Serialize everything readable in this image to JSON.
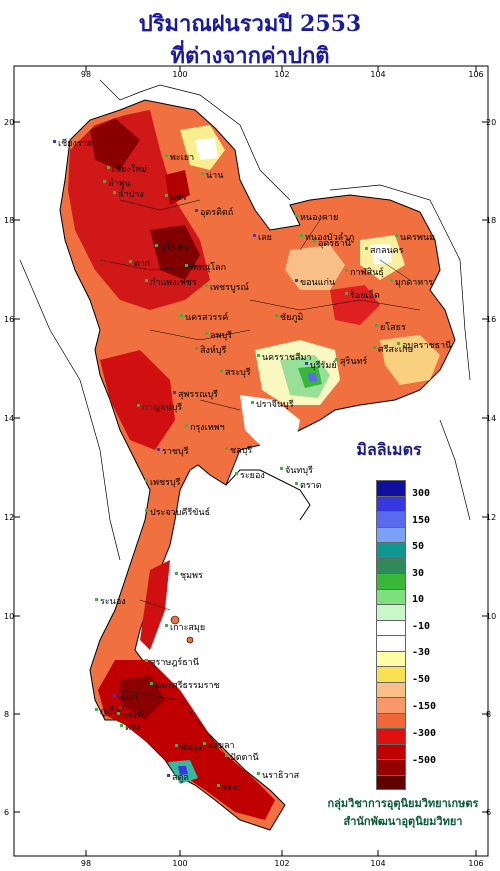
{
  "title": {
    "line1": "ปริมาณฝนรวมปี  2553",
    "line2": "ที่ต่างจากค่าปกติ"
  },
  "axes": {
    "top": [
      "98",
      "100",
      "102",
      "104",
      "106"
    ],
    "bottom": [
      "98",
      "100",
      "102",
      "104",
      "106"
    ],
    "left": [
      "20",
      "18",
      "16",
      "14",
      "12",
      "10",
      "8",
      "6"
    ],
    "right": [
      "20",
      "18",
      "16",
      "14",
      "12",
      "10",
      "8",
      "6"
    ]
  },
  "legend": {
    "unit": "มิลลิเมตร",
    "colors": [
      "#1010a0",
      "#3838e0",
      "#5a6af0",
      "#7aa0f8",
      "#109890",
      "#2e8a5a",
      "#38b838",
      "#7ce07c",
      "#c8f8c8",
      "#ffffff",
      "#ffffff",
      "#ffffa8",
      "#f8e050",
      "#f8c088",
      "#f89868",
      "#f06838",
      "#e01010",
      "#c00000",
      "#980000",
      "#600000"
    ],
    "labels": [
      "300",
      "150",
      "50",
      "30",
      "10",
      "-10",
      "-30",
      "-50",
      "-150",
      "-300",
      "-500"
    ]
  },
  "provinces": [
    "เชียงราย",
    "เชียงใหม่",
    "ลำพูน",
    "พะเยา",
    "น่าน",
    "ลำปาง",
    "แพร่",
    "อุตรดิตถ์",
    "ตาก",
    "สุโขทัย",
    "พิษณุโลก",
    "กำแพงเพชร",
    "เพชรบูรณ์",
    "นครสวรรค์",
    "เลย",
    "หนองบัวลำภู",
    "หนองคาย",
    "อุดรธานี",
    "สกลนคร",
    "นครพนม",
    "มุกดาหาร",
    "ขอนแก่น",
    "กาฬสินธุ์",
    "ร้อยเอ็ด",
    "ยโสธร",
    "อุบลราชธานี",
    "ชัยภูมิ",
    "นครราชสีมา",
    "บุรีรัมย์",
    "สุรินทร์",
    "ศรีสะเกษ",
    "ลพบุรี",
    "สิงห์บุรี",
    "สระบุรี",
    "กาญจนบุรี",
    "สุพรรณบุรี",
    "กรุงเทพฯ",
    "ปราจีนบุรี",
    "ชลบุรี",
    "ระยอง",
    "จันทบุรี",
    "ตราด",
    "ราชบุรี",
    "เพชรบุรี",
    "ประจวบคีรีขันธ์",
    "ชุมพร",
    "ระนอง",
    "สุราษฎร์ธานี",
    "เกาะสมุย",
    "พังงา",
    "ภูเก็ต",
    "กระบี่",
    "นครศรีธรรมราช",
    "ตรัง",
    "พัทลุง",
    "สงขลา",
    "สตูล",
    "ปัตตานี",
    "ยะลา",
    "นราธิวาส"
  ],
  "credits": {
    "line1": "กลุ่มวิชาการอุตุนิยมวิทยาเกษตร",
    "line2": "สำนักพัฒนาอุตุนิยมวิทยา"
  }
}
